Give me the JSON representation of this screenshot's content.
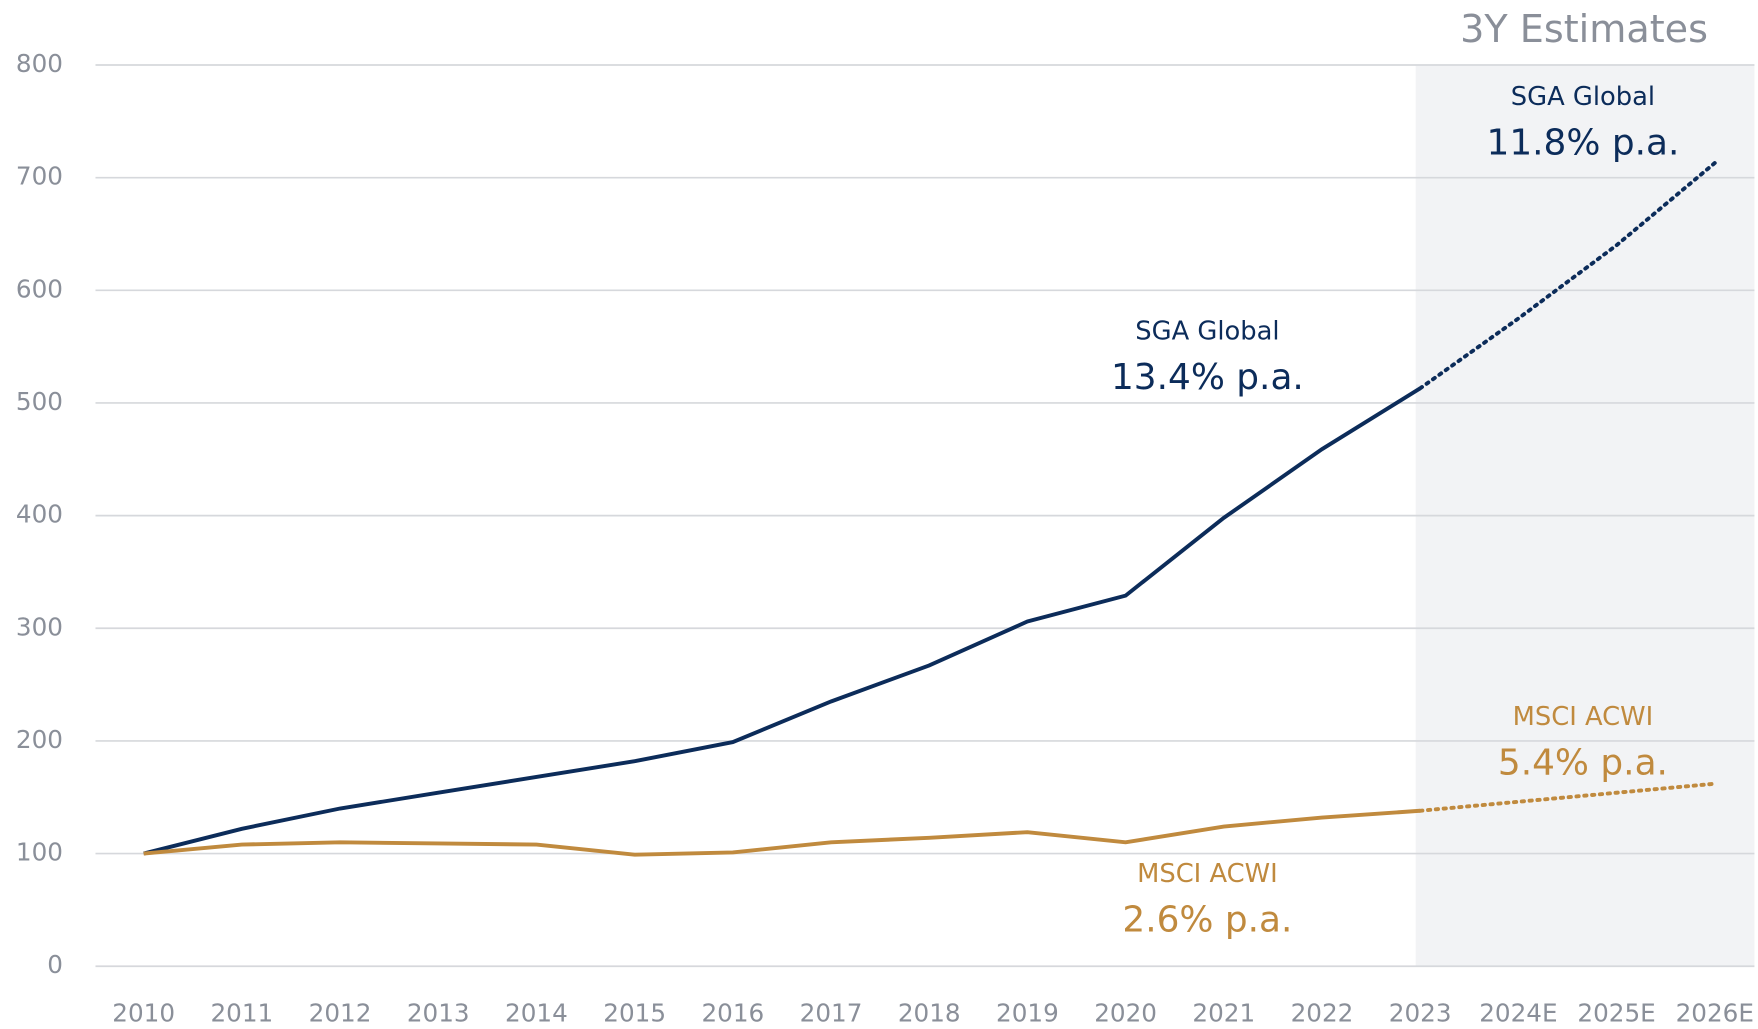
{
  "chart_data": {
    "type": "line",
    "categories": [
      "2010",
      "2011",
      "2012",
      "2013",
      "2014",
      "2015",
      "2016",
      "2017",
      "2018",
      "2019",
      "2020",
      "2021",
      "2022",
      "2023",
      "2024E",
      "2025E",
      "2026E"
    ],
    "series": [
      {
        "name": "SGA Global",
        "color": "#0c2c5a",
        "values": [
          100,
          122,
          140,
          154,
          168,
          182,
          199,
          235,
          267,
          306,
          329,
          398,
          459,
          513,
          575,
          640,
          713
        ]
      },
      {
        "name": "MSCI ACWI",
        "color": "#c08a3e",
        "values": [
          100,
          108,
          110,
          109,
          108,
          99,
          101,
          110,
          114,
          119,
          110,
          124,
          132,
          138,
          146,
          154,
          162
        ]
      }
    ],
    "ylim": [
      0,
      800
    ],
    "yticks": [
      0,
      100,
      200,
      300,
      400,
      500,
      600,
      700,
      800
    ],
    "grid": true,
    "estimates": {
      "label": "3Y Estimates",
      "from": "2023",
      "to": "2026E",
      "color": "#f2f3f5"
    },
    "annotations": [
      {
        "title": "SGA Global",
        "text": "13.4% p.a.",
        "color": "#0c2c5a"
      },
      {
        "title": "SGA Global",
        "text": "11.8% p.a.",
        "color": "#0c2c5a"
      },
      {
        "title": "MSCI ACWI",
        "text": "5.4% p.a.",
        "color": "#c08a3e"
      },
      {
        "title": "MSCI ACWI",
        "text": "2.6% p.a.",
        "color": "#c08a3e"
      }
    ]
  }
}
